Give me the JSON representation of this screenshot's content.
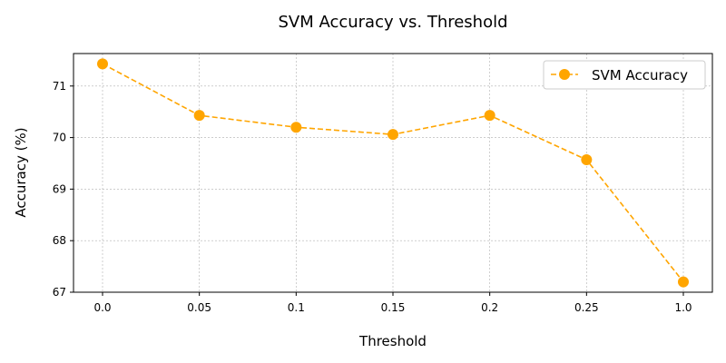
{
  "chart_data": {
    "type": "line",
    "title": "SVM Accuracy vs. Threshold",
    "xlabel": "Threshold",
    "ylabel": "Accuracy (%)",
    "categories": [
      "0.0",
      "0.05",
      "0.1",
      "0.15",
      "0.2",
      "0.25",
      "1.0"
    ],
    "series": [
      {
        "name": "SVM Accuracy",
        "values": [
          71.43,
          70.43,
          70.2,
          70.06,
          70.43,
          69.57,
          67.2
        ],
        "color": "#ffa500",
        "line_style": "dashed",
        "marker": "circle"
      }
    ],
    "ylim": [
      67,
      71.63
    ],
    "yticks": [
      "67",
      "68",
      "69",
      "70",
      "71"
    ],
    "grid": true,
    "legend": "upper right"
  }
}
